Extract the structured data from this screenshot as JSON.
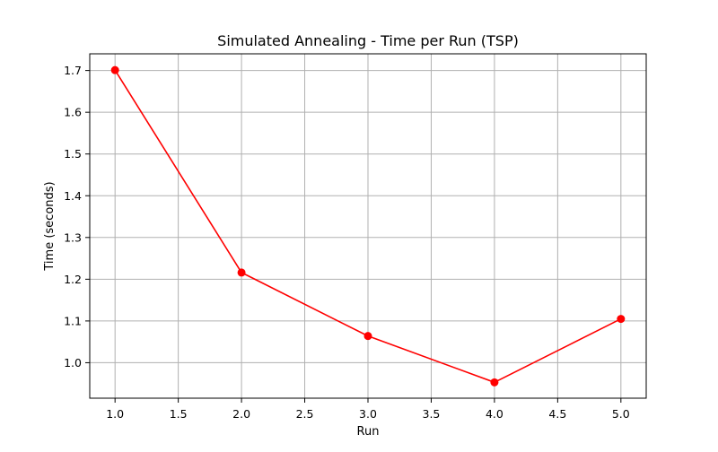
{
  "chart_data": {
    "type": "line",
    "title": "Simulated Annealing - Time per Run (TSP)",
    "xlabel": "Run",
    "ylabel": "Time (seconds)",
    "x": [
      1,
      2,
      3,
      4,
      5
    ],
    "series": [
      {
        "values": [
          1.701,
          1.216,
          1.064,
          0.953,
          1.105
        ],
        "color": "#ff0000",
        "marker": "circle"
      }
    ],
    "xlim": [
      0.8,
      5.2
    ],
    "ylim": [
      0.915,
      1.74
    ],
    "xticks": [
      1.0,
      1.5,
      2.0,
      2.5,
      3.0,
      3.5,
      4.0,
      4.5,
      5.0
    ],
    "xtick_labels": [
      "1.0",
      "1.5",
      "2.0",
      "2.5",
      "3.0",
      "3.5",
      "4.0",
      "4.5",
      "5.0"
    ],
    "yticks": [
      1.0,
      1.1,
      1.2,
      1.3,
      1.4,
      1.5,
      1.6,
      1.7
    ],
    "ytick_labels": [
      "1.0",
      "1.1",
      "1.2",
      "1.3",
      "1.4",
      "1.5",
      "1.6",
      "1.7"
    ],
    "grid": true,
    "grid_color": "#b0b0b0",
    "legend": false
  }
}
